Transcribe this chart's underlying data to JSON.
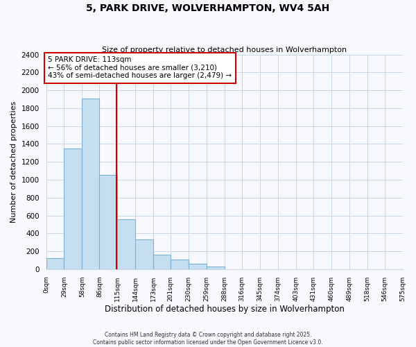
{
  "title": "5, PARK DRIVE, WOLVERHAMPTON, WV4 5AH",
  "subtitle": "Size of property relative to detached houses in Wolverhampton",
  "xlabel": "Distribution of detached houses by size in Wolverhampton",
  "ylabel": "Number of detached properties",
  "bar_color": "#c5dff0",
  "bar_edge_color": "#7ab0d4",
  "vline_color": "#cc0000",
  "vline_x": 113,
  "annotation_line1": "5 PARK DRIVE: 113sqm",
  "annotation_line2": "← 56% of detached houses are smaller (3,210)",
  "annotation_line3": "43% of semi-detached houses are larger (2,479) →",
  "bin_edges": [
    0,
    29,
    58,
    86,
    115,
    144,
    173,
    201,
    230,
    259,
    288,
    316,
    345,
    374,
    403,
    431,
    460,
    489,
    518,
    546,
    575
  ],
  "bin_counts": [
    125,
    1350,
    1910,
    1055,
    560,
    335,
    160,
    105,
    60,
    30,
    0,
    0,
    0,
    0,
    0,
    0,
    0,
    0,
    0,
    0
  ],
  "tick_labels": [
    "0sqm",
    "29sqm",
    "58sqm",
    "86sqm",
    "115sqm",
    "144sqm",
    "173sqm",
    "201sqm",
    "230sqm",
    "259sqm",
    "288sqm",
    "316sqm",
    "345sqm",
    "374sqm",
    "403sqm",
    "431sqm",
    "460sqm",
    "489sqm",
    "518sqm",
    "546sqm",
    "575sqm"
  ],
  "ylim": [
    0,
    2400
  ],
  "yticks": [
    0,
    200,
    400,
    600,
    800,
    1000,
    1200,
    1400,
    1600,
    1800,
    2000,
    2200,
    2400
  ],
  "footer_line1": "Contains HM Land Registry data © Crown copyright and database right 2025.",
  "footer_line2": "Contains public sector information licensed under the Open Government Licence v3.0.",
  "background_color": "#f8f8ff",
  "grid_color": "#c8d8e8"
}
